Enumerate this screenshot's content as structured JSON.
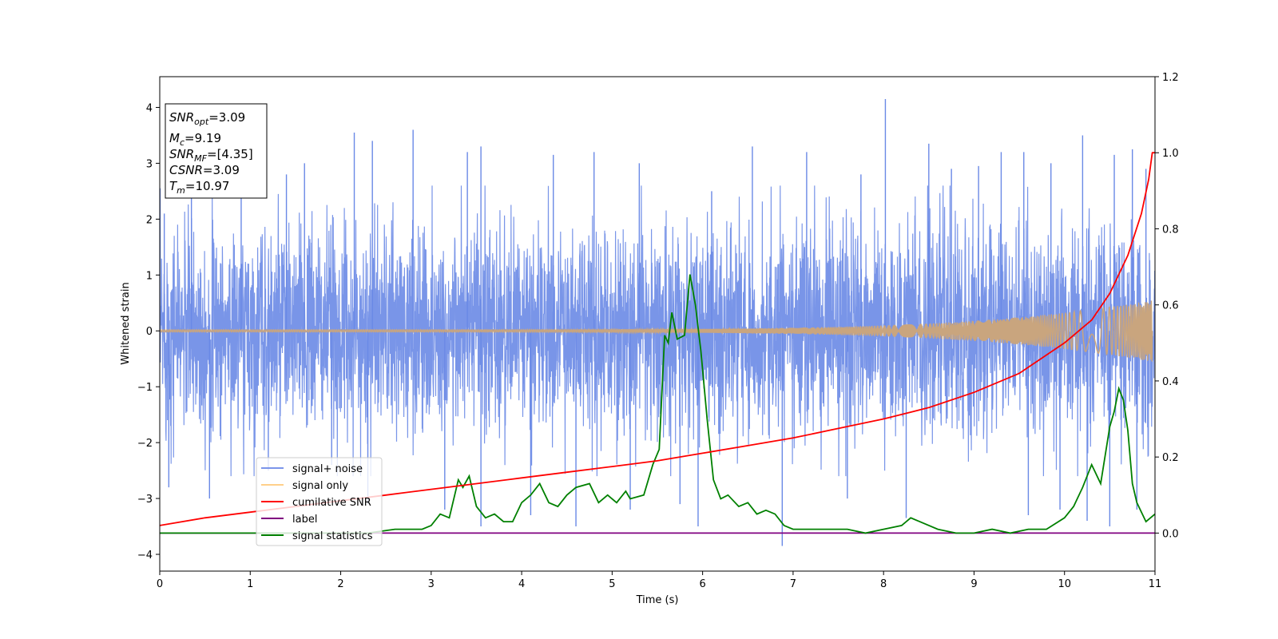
{
  "chart_data": {
    "type": "line",
    "xlabel": "Time (s)",
    "ylabel": "Whitened strain",
    "xlim": [
      0,
      11
    ],
    "ylim": [
      -4.3,
      4.55
    ],
    "y2lim": [
      -0.1,
      1.2
    ],
    "x_ticks": [
      "0",
      "1",
      "2",
      "3",
      "4",
      "5",
      "6",
      "7",
      "8",
      "9",
      "10",
      "11"
    ],
    "y_ticks": [
      "−4",
      "−3",
      "−2",
      "−1",
      "0",
      "1",
      "2",
      "3",
      "4"
    ],
    "y2_ticks": [
      "0.0",
      "0.2",
      "0.4",
      "0.6",
      "0.8",
      "1.0",
      "1.2"
    ],
    "colors": {
      "noise": "#6a89e6",
      "signal": "#c9a57e",
      "csnr": "#ff0000",
      "label": "#800080",
      "stats": "#008000"
    },
    "legend": {
      "placement": "lower-left",
      "items": [
        {
          "name": "signal+ noise",
          "color": "#7b95ea"
        },
        {
          "name": "signal only",
          "color": "#ffd08a"
        },
        {
          "name": "cumilative SNR",
          "color": "#ff0000"
        },
        {
          "name": "label",
          "color": "#800080"
        },
        {
          "name": "signal statistics",
          "color": "#008000"
        }
      ]
    },
    "annotation": {
      "snr_opt": "=3.09",
      "mc": "=9.19",
      "snr_mf": "=[4.35]",
      "csnr": "=3.09",
      "tm": "=10.97"
    },
    "series": [
      {
        "name": "signal+ noise",
        "axis": "left",
        "envelope_note": "dense noise band",
        "band_upper": 1.8,
        "band_lower": -1.8,
        "spikes_up": [
          [
            0.05,
            2.1
          ],
          [
            0.35,
            2.6
          ],
          [
            0.9,
            2.4
          ],
          [
            1.4,
            2.8
          ],
          [
            1.6,
            3.0
          ],
          [
            2.15,
            3.55
          ],
          [
            2.35,
            3.4
          ],
          [
            2.8,
            3.6
          ],
          [
            3.4,
            3.2
          ],
          [
            3.55,
            3.3
          ],
          [
            4.35,
            3.15
          ],
          [
            4.8,
            3.2
          ],
          [
            5.3,
            3.0
          ],
          [
            6.1,
            2.5
          ],
          [
            6.55,
            3.3
          ],
          [
            7.15,
            3.2
          ],
          [
            7.75,
            2.8
          ],
          [
            8.02,
            4.15
          ],
          [
            8.5,
            3.35
          ],
          [
            8.75,
            2.9
          ],
          [
            9.05,
            2.95
          ],
          [
            9.3,
            3.2
          ],
          [
            9.55,
            3.2
          ],
          [
            9.85,
            3.0
          ],
          [
            10.2,
            3.5
          ],
          [
            10.55,
            3.15
          ],
          [
            10.75,
            3.25
          ],
          [
            10.9,
            2.9
          ]
        ],
        "spikes_down": [
          [
            0.1,
            -2.8
          ],
          [
            0.55,
            -3.0
          ],
          [
            1.2,
            -2.5
          ],
          [
            1.9,
            -2.4
          ],
          [
            2.3,
            -3.1
          ],
          [
            3.15,
            -3.2
          ],
          [
            3.55,
            -3.5
          ],
          [
            4.1,
            -3.3
          ],
          [
            4.6,
            -3.5
          ],
          [
            5.2,
            -3.2
          ],
          [
            5.75,
            -3.1
          ],
          [
            5.95,
            -3.5
          ],
          [
            6.88,
            -3.85
          ],
          [
            7.6,
            -3.0
          ],
          [
            8.25,
            -3.35
          ],
          [
            9.6,
            -3.3
          ],
          [
            9.95,
            -3.2
          ],
          [
            10.25,
            -3.4
          ],
          [
            10.5,
            -3.5
          ],
          [
            10.8,
            -3.2
          ]
        ]
      },
      {
        "name": "signal only",
        "axis": "left",
        "amplitude_start": 0.02,
        "amplitude_end": 0.55
      },
      {
        "name": "cumilative SNR",
        "axis": "right",
        "x": [
          0,
          0.5,
          1,
          1.5,
          2,
          2.5,
          3,
          3.5,
          4,
          4.5,
          5,
          5.5,
          6,
          6.5,
          7,
          7.5,
          8,
          8.5,
          9,
          9.5,
          10,
          10.3,
          10.5,
          10.7,
          10.85,
          10.93,
          10.97,
          11.0
        ],
        "values": [
          0.02,
          0.04,
          0.055,
          0.07,
          0.085,
          0.1,
          0.115,
          0.13,
          0.145,
          0.16,
          0.175,
          0.19,
          0.21,
          0.23,
          0.25,
          0.275,
          0.3,
          0.33,
          0.37,
          0.42,
          0.5,
          0.56,
          0.63,
          0.73,
          0.84,
          0.93,
          1.0,
          1.0
        ]
      },
      {
        "name": "label",
        "axis": "right",
        "x": [
          0,
          11
        ],
        "values": [
          0,
          0
        ]
      },
      {
        "name": "signal statistics",
        "axis": "right",
        "x": [
          0,
          0.5,
          1,
          1.5,
          2,
          2.3,
          2.6,
          2.9,
          3.0,
          3.1,
          3.2,
          3.3,
          3.35,
          3.42,
          3.5,
          3.6,
          3.7,
          3.8,
          3.9,
          4.0,
          4.1,
          4.2,
          4.3,
          4.4,
          4.5,
          4.6,
          4.75,
          4.85,
          4.95,
          5.05,
          5.15,
          5.2,
          5.35,
          5.45,
          5.52,
          5.58,
          5.62,
          5.66,
          5.72,
          5.8,
          5.86,
          5.92,
          5.98,
          6.05,
          6.12,
          6.2,
          6.28,
          6.4,
          6.5,
          6.6,
          6.7,
          6.8,
          6.9,
          7.0,
          7.1,
          7.2,
          7.4,
          7.6,
          7.8,
          8.0,
          8.2,
          8.3,
          8.4,
          8.6,
          8.8,
          9.0,
          9.2,
          9.4,
          9.6,
          9.8,
          10.0,
          10.1,
          10.2,
          10.3,
          10.4,
          10.5,
          10.55,
          10.6,
          10.65,
          10.7,
          10.75,
          10.8,
          10.9,
          11.0
        ],
        "values": [
          0.0,
          0.0,
          0.0,
          0.0,
          0.0,
          0.0,
          0.01,
          0.01,
          0.02,
          0.05,
          0.04,
          0.14,
          0.12,
          0.15,
          0.07,
          0.04,
          0.05,
          0.03,
          0.03,
          0.08,
          0.1,
          0.13,
          0.08,
          0.07,
          0.1,
          0.12,
          0.13,
          0.08,
          0.1,
          0.08,
          0.11,
          0.09,
          0.1,
          0.18,
          0.22,
          0.52,
          0.5,
          0.58,
          0.51,
          0.52,
          0.68,
          0.6,
          0.48,
          0.3,
          0.14,
          0.09,
          0.1,
          0.07,
          0.08,
          0.05,
          0.06,
          0.05,
          0.02,
          0.01,
          0.01,
          0.01,
          0.01,
          0.01,
          0.0,
          0.01,
          0.02,
          0.04,
          0.03,
          0.01,
          0.0,
          0.0,
          0.01,
          0.0,
          0.01,
          0.01,
          0.04,
          0.07,
          0.12,
          0.18,
          0.13,
          0.28,
          0.32,
          0.38,
          0.35,
          0.27,
          0.13,
          0.08,
          0.03,
          0.05
        ]
      }
    ]
  }
}
